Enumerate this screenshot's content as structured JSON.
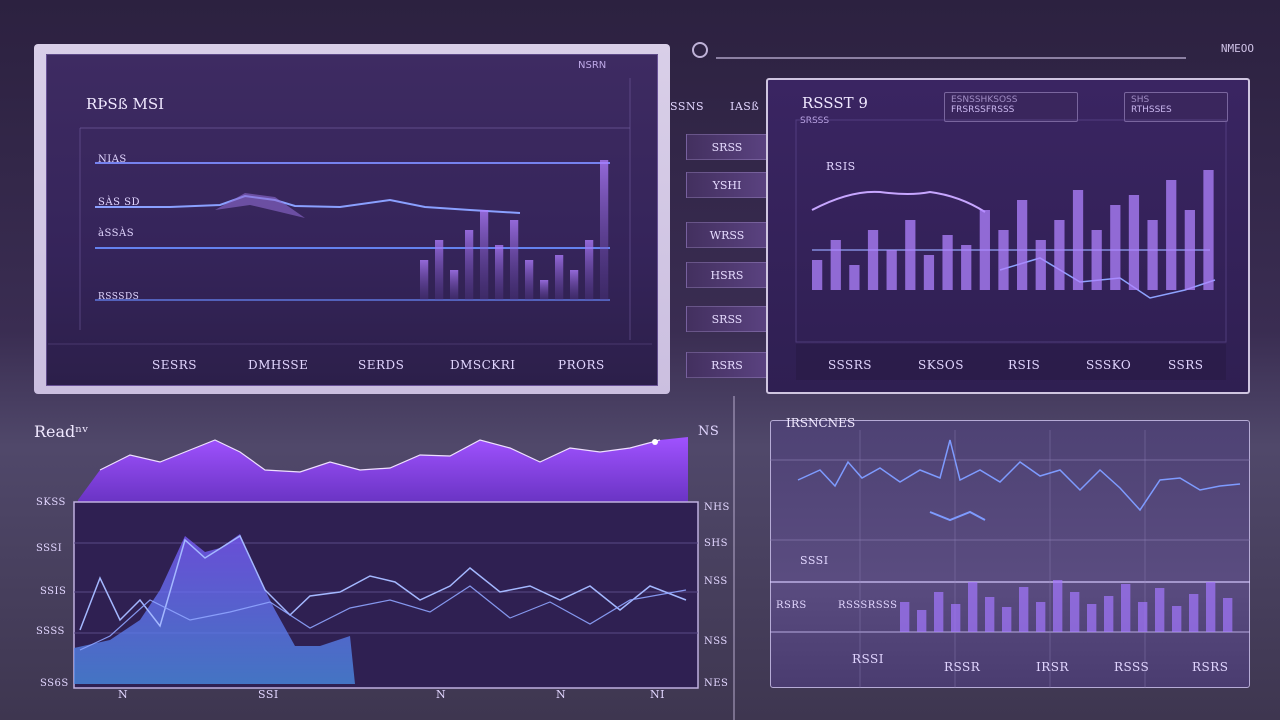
{
  "colors": {
    "accent": "#a15cff",
    "accent_light": "#c48dff",
    "line_blue": "#6f8cff",
    "panel_bg": "#3c2a5e"
  },
  "top_bar": {
    "search_icon": "search-icon",
    "status_text": "NMEOO"
  },
  "main_panel": {
    "title": "RÞSß MSI",
    "top_label": "NSRN",
    "y_labels": [
      "NIAS",
      "SÀS SD",
      "àSSÀS",
      "RSSSDS"
    ],
    "x_labels": [
      "SESRS",
      "DMHSSE",
      "SERDS",
      "DMSCKRI",
      "PRORS"
    ]
  },
  "side_tabs": {
    "header_left": "SSNS",
    "header_right": "IASß",
    "items": [
      "SRSS",
      "YSHI",
      "WRSS",
      "HSRS",
      "SRSS",
      "RSRS"
    ]
  },
  "right_panel": {
    "title": "RSSST 9",
    "subtitle": "SRSSS",
    "search_placeholder": "ESNSSHKSOSS",
    "search_value": "FRSRSSFRSSS",
    "filter_label": "SHS",
    "filter_value": "RTHSSES",
    "series_label": "RSIS",
    "x_labels": [
      "SSSRS",
      "SKSOS",
      "RSIS",
      "SSSKO",
      "SSRS"
    ]
  },
  "bottom_left": {
    "title": "Readⁿᵛ",
    "right_label": "NS",
    "y_labels_left": [
      "SKSS",
      "SSSI",
      "SSIS",
      "SSSS",
      "SS6S"
    ],
    "y_labels_right": [
      "NHS",
      "SHS",
      "NSS",
      "NSS",
      "NES"
    ],
    "x_labels": [
      "N",
      "SSI",
      "N",
      "N",
      "NI"
    ]
  },
  "bottom_right": {
    "title": "IRSNCNES",
    "section_label": "SSSI",
    "y_label_1": "RSRS",
    "y_label_2": "RSSSRSSS",
    "x_labels": [
      "RSSI",
      "RSSR",
      "IRSR",
      "RSSS",
      "RSRS"
    ]
  }
}
